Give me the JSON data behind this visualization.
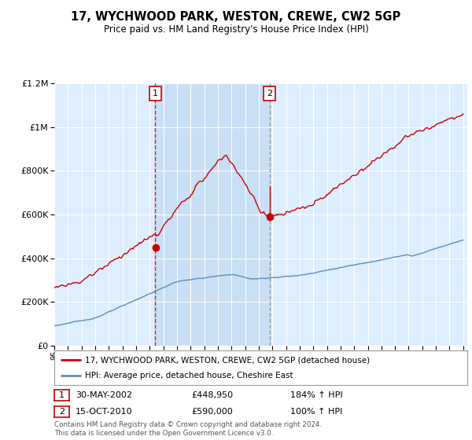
{
  "title": "17, WYCHWOOD PARK, WESTON, CREWE, CW2 5GP",
  "subtitle": "Price paid vs. HM Land Registry's House Price Index (HPI)",
  "sale1_label": "30-MAY-2002",
  "sale1_price": 448950,
  "sale1_year": 2002.41,
  "sale1_hpi_pct": "184% ↑ HPI",
  "sale2_label": "15-OCT-2010",
  "sale2_price": 590000,
  "sale2_year": 2010.79,
  "sale2_hpi_pct": "100% ↑ HPI",
  "legend_red": "17, WYCHWOOD PARK, WESTON, CREWE, CW2 5GP (detached house)",
  "legend_blue": "HPI: Average price, detached house, Cheshire East",
  "footer": "Contains HM Land Registry data © Crown copyright and database right 2024.\nThis data is licensed under the Open Government Licence v3.0.",
  "red_color": "#cc0000",
  "blue_color": "#5b8db8",
  "bg_color": "#ddeeff",
  "shade_color": "#c8dff5",
  "plot_bg": "#ffffff",
  "ylim": [
    0,
    1200000
  ],
  "yticks": [
    0,
    200000,
    400000,
    600000,
    800000,
    1000000,
    1200000
  ],
  "start_year": 1995,
  "end_year": 2025
}
